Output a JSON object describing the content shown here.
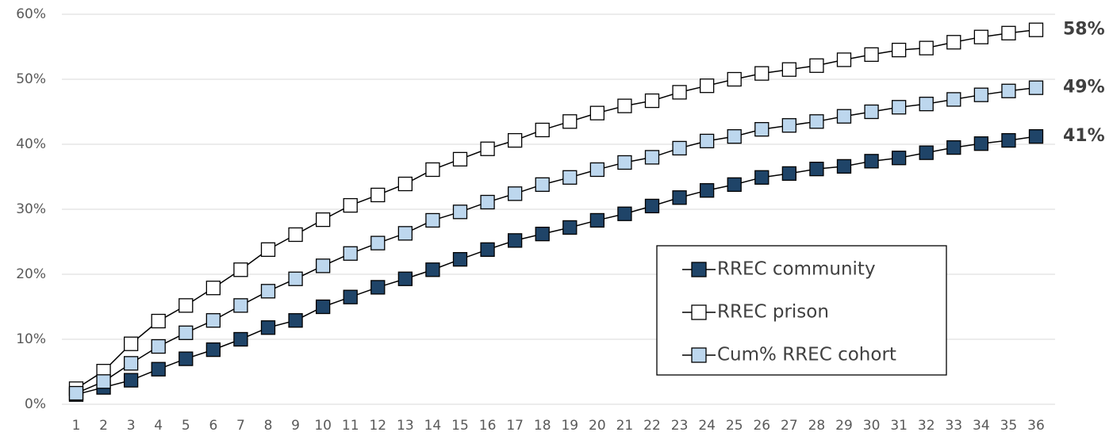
{
  "chart_data": {
    "type": "line",
    "categories": [
      "1",
      "2",
      "3",
      "4",
      "5",
      "6",
      "7",
      "8",
      "9",
      "10",
      "11",
      "12",
      "13",
      "14",
      "15",
      "16",
      "17",
      "18",
      "19",
      "20",
      "21",
      "22",
      "23",
      "24",
      "25",
      "26",
      "27",
      "28",
      "29",
      "30",
      "31",
      "32",
      "33",
      "34",
      "35",
      "36"
    ],
    "ylim": [
      0,
      60
    ],
    "yticks": [
      {
        "value": 0,
        "label": "0%"
      },
      {
        "value": 10,
        "label": "10%"
      },
      {
        "value": 20,
        "label": "20%"
      },
      {
        "value": 30,
        "label": "30%"
      },
      {
        "value": 40,
        "label": "40%"
      },
      {
        "value": 50,
        "label": "50%"
      },
      {
        "value": 60,
        "label": "60%"
      }
    ],
    "grid": true,
    "legend": "right",
    "series": [
      {
        "name": "RREC community",
        "color": "#1f4468",
        "end_label": "41%",
        "values": [
          1.5,
          2.6,
          3.7,
          5.4,
          7.0,
          8.4,
          10.0,
          11.8,
          12.9,
          15.0,
          16.5,
          18.0,
          19.3,
          20.7,
          22.3,
          23.8,
          25.2,
          26.2,
          27.2,
          28.3,
          29.3,
          30.5,
          31.8,
          32.9,
          33.8,
          34.9,
          35.5,
          36.2,
          36.6,
          37.4,
          37.9,
          38.7,
          39.5,
          40.1,
          40.6,
          41.2
        ]
      },
      {
        "name": "RREC prison",
        "color": "#ffffff",
        "end_label": "58%",
        "values": [
          2.4,
          5.1,
          9.3,
          12.8,
          15.2,
          17.9,
          20.7,
          23.8,
          26.1,
          28.4,
          30.6,
          32.2,
          33.9,
          36.1,
          37.7,
          39.3,
          40.6,
          42.2,
          43.5,
          44.8,
          45.9,
          46.7,
          48.0,
          49.0,
          50.0,
          50.9,
          51.5,
          52.1,
          53.0,
          53.8,
          54.5,
          54.8,
          55.7,
          56.5,
          57.1,
          57.6
        ]
      },
      {
        "name": "Cum% RREC cohort",
        "color": "#bdd7ee",
        "end_label": "49%",
        "values": [
          1.7,
          3.5,
          6.3,
          8.9,
          11.0,
          12.9,
          15.2,
          17.4,
          19.3,
          21.3,
          23.2,
          24.8,
          26.3,
          28.3,
          29.6,
          31.1,
          32.4,
          33.8,
          34.9,
          36.1,
          37.2,
          38.0,
          39.4,
          40.5,
          41.2,
          42.3,
          42.9,
          43.5,
          44.3,
          45.0,
          45.7,
          46.2,
          46.9,
          47.6,
          48.2,
          48.7
        ]
      }
    ]
  }
}
